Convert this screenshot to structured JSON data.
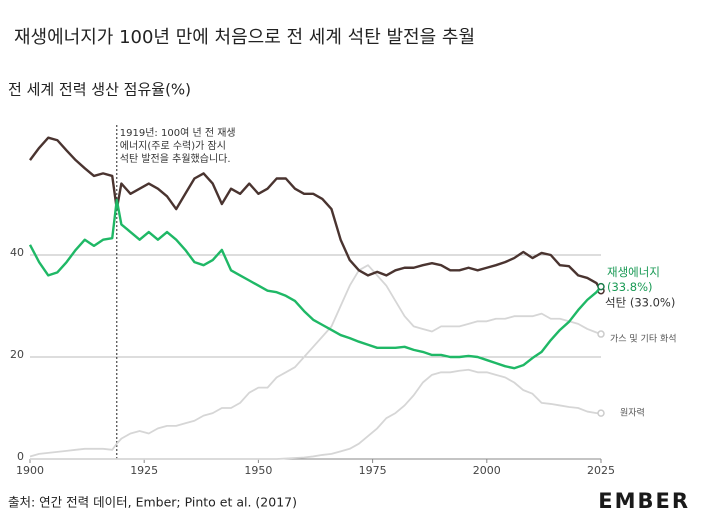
{
  "chart_data": {
    "type": "line",
    "title": "재생에너지가 100년 만에 처음으로 전 세계 석탄 발전을 추월",
    "subtitle": "전 세계 전력 생산 점유율(%)",
    "source": "출처: 연간 전력 데이터, Ember; Pinto et al. (2017)",
    "logo": "EMBER",
    "annotation": {
      "text": [
        "1919년: 100여 년 전 재생",
        "에너지(주로 수력)가 잠시",
        "석탄 발전을 추월했습니다."
      ],
      "x": 1919
    },
    "xlim": [
      1900,
      2025
    ],
    "ylim": [
      0,
      66
    ],
    "xticks": [
      1900,
      1925,
      1950,
      1975,
      2000,
      2025
    ],
    "yticks": [
      0,
      20,
      40
    ],
    "grid": true,
    "x": [
      1900,
      1902,
      1904,
      1906,
      1908,
      1910,
      1912,
      1914,
      1916,
      1918,
      1919,
      1920,
      1922,
      1924,
      1926,
      1928,
      1930,
      1932,
      1934,
      1936,
      1938,
      1940,
      1942,
      1944,
      1946,
      1948,
      1950,
      1952,
      1954,
      1956,
      1958,
      1960,
      1962,
      1964,
      1966,
      1968,
      1970,
      1972,
      1974,
      1976,
      1978,
      1980,
      1982,
      1984,
      1986,
      1988,
      1990,
      1992,
      1994,
      1996,
      1998,
      2000,
      2002,
      2004,
      2006,
      2008,
      2010,
      2012,
      2014,
      2016,
      2018,
      2020,
      2022,
      2024,
      2025
    ],
    "series": [
      {
        "name": "가스 및 기타 화석",
        "color": "#d6d6d6",
        "values": [
          0.5,
          1,
          1.2,
          1.4,
          1.6,
          1.8,
          2,
          2,
          2,
          1.8,
          3,
          4,
          5,
          5.5,
          5,
          6,
          6.5,
          6.5,
          7,
          7.5,
          8.5,
          9,
          10,
          10,
          11,
          13,
          14,
          14,
          16,
          17,
          18,
          20,
          22,
          24,
          26,
          30,
          34,
          37,
          38,
          36,
          34,
          31,
          28,
          26,
          25.5,
          25,
          26,
          26,
          26,
          26.5,
          27,
          27,
          27.5,
          27.5,
          28,
          28,
          28,
          28.5,
          27.5,
          27.5,
          27,
          26.5,
          25.5,
          24.8,
          24.5
        ]
      },
      {
        "name": "원자력",
        "color": "#d6d6d6",
        "values": [
          0,
          0,
          0,
          0,
          0,
          0,
          0,
          0,
          0,
          0,
          0,
          0,
          0,
          0,
          0,
          0,
          0,
          0,
          0,
          0,
          0,
          0,
          0,
          0,
          0,
          0,
          0,
          0,
          0,
          0.1,
          0.2,
          0.3,
          0.5,
          0.8,
          1,
          1.5,
          2,
          3,
          4.5,
          6,
          8,
          9,
          10.5,
          12.5,
          15,
          16.5,
          17,
          17,
          17.3,
          17.5,
          17,
          17,
          16.5,
          16,
          15,
          13.5,
          12.8,
          11,
          10.8,
          10.5,
          10.2,
          10,
          9.3,
          9,
          9
        ]
      },
      {
        "name": "석탄",
        "color": "#4a3430",
        "end_label": "(33.0%)",
        "values": [
          58.6,
          61,
          63,
          62.5,
          60.5,
          58.6,
          57,
          55.5,
          56,
          55.5,
          49,
          54,
          52,
          53,
          54,
          53,
          51.5,
          49,
          52,
          55,
          56,
          54,
          50,
          53,
          52,
          54,
          52,
          53,
          55,
          55,
          53,
          52,
          52,
          51,
          49,
          43,
          39,
          37,
          36,
          36.7,
          36,
          37,
          37.5,
          37.5,
          38,
          38.4,
          38,
          37,
          37,
          37.5,
          37,
          37.5,
          38,
          38.6,
          39.4,
          40.6,
          39.4,
          40.4,
          40,
          38,
          37.8,
          36,
          35.5,
          34.5,
          33.0
        ]
      },
      {
        "name": "재생에너지",
        "color": "#1fb866",
        "end_label": "(33.8%)",
        "values": [
          42,
          38.6,
          36,
          36.6,
          38.6,
          41,
          43,
          41.8,
          43,
          43.3,
          50.8,
          46,
          44.5,
          43,
          44.5,
          43,
          44.5,
          43,
          41,
          38.6,
          38,
          39,
          41,
          37,
          36,
          35,
          34,
          33,
          32.7,
          32,
          31,
          29,
          27.3,
          26.3,
          25.3,
          24.3,
          23.7,
          23,
          22.4,
          21.8,
          21.8,
          21.8,
          22,
          21.4,
          21,
          20.4,
          20.4,
          20,
          20,
          20.2,
          20,
          19.4,
          18.8,
          18.2,
          17.8,
          18.4,
          19.8,
          21,
          23.3,
          25.3,
          26.9,
          29.2,
          31.2,
          32.7,
          33.8
        ]
      }
    ]
  }
}
